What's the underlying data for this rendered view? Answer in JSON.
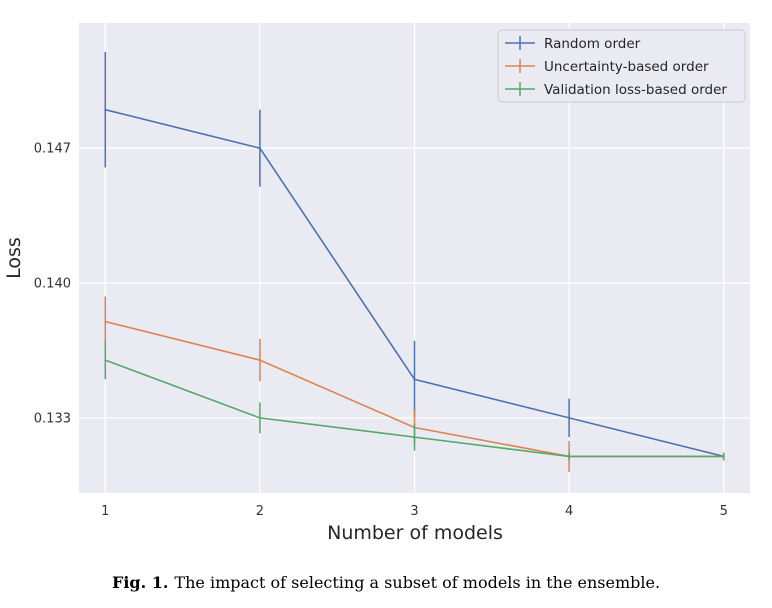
{
  "chart_data": {
    "type": "line",
    "x": [
      1,
      2,
      3,
      4,
      5
    ],
    "xlabel": "Number of models",
    "ylabel": "Loss",
    "xticks": [
      "1",
      "2",
      "3",
      "4",
      "5"
    ],
    "yticks": [
      "0.133",
      "0.140",
      "0.147"
    ],
    "ytick_values": [
      0.133,
      0.14,
      0.147
    ],
    "xlim": [
      0.83,
      5.17
    ],
    "ylim": [
      0.1291,
      0.1535
    ],
    "grid": true,
    "legend_position": "top-right",
    "series": [
      {
        "name": "Random order",
        "color": "#4c72b0",
        "values": [
          0.149,
          0.147,
          0.135,
          0.133,
          0.131
        ],
        "error": [
          0.003,
          0.002,
          0.002,
          0.001,
          0.0002
        ]
      },
      {
        "name": "Uncertainty-based order",
        "color": "#dd8452",
        "values": [
          0.138,
          0.136,
          0.1325,
          0.131,
          0.131
        ],
        "error": [
          0.0013,
          0.0011,
          0.0009,
          0.0008,
          0.0002
        ]
      },
      {
        "name": "Validation loss-based order",
        "color": "#55a868",
        "values": [
          0.136,
          0.133,
          0.132,
          0.131,
          0.131
        ],
        "error": [
          0.001,
          0.0008,
          0.0007,
          0.0002,
          0.0002
        ]
      }
    ]
  },
  "caption": {
    "label": "Fig. 1.",
    "text": "The impact of selecting a subset of models in the ensemble."
  }
}
